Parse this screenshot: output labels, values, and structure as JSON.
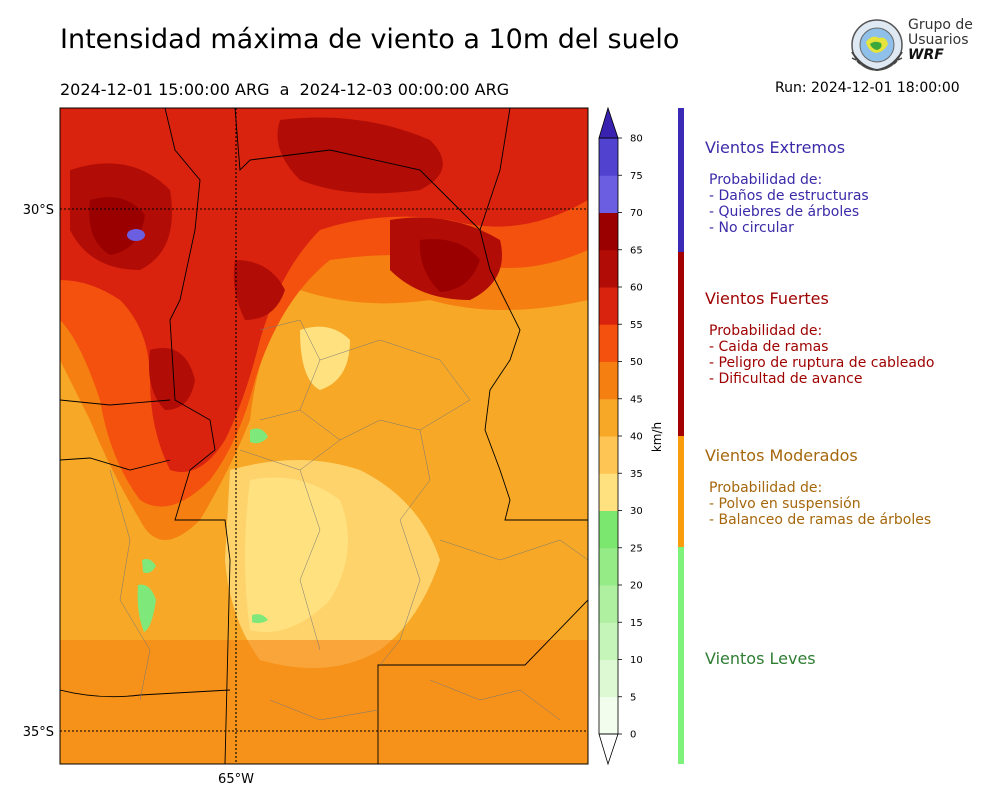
{
  "header": {
    "title": "Intensidad máxima de viento a 10m del suelo",
    "period": "2024-12-01 15:00:00 ARG  a  2024-12-03 00:00:00 ARG",
    "run": "Run: 2024-12-01 18:00:00"
  },
  "logo": {
    "line1": "Grupo de",
    "line2": "Usuarios",
    "line3": "WRF"
  },
  "map": {
    "lat_labels": [
      "30°S",
      "35°S"
    ],
    "lon_labels": [
      "65°W"
    ],
    "colors": {
      "base": "#f7a827",
      "light": "#ffd36b",
      "pale": "#ffe17f",
      "orange": "#f57f10",
      "red_orange": "#f4510f",
      "red": "#d9230e",
      "dark_red": "#b10c05",
      "deep_red": "#9b0000",
      "violet": "#6b5ee0",
      "green": "#7fe87a"
    }
  },
  "colorbar": {
    "unit": "km/h",
    "ticks": [
      "0",
      "5",
      "10",
      "15",
      "20",
      "25",
      "30",
      "35",
      "40",
      "45",
      "50",
      "55",
      "60",
      "65",
      "70",
      "75",
      "80"
    ],
    "colors": [
      "#f2fdee",
      "#dcf9d4",
      "#c6f5ba",
      "#aef0a0",
      "#95ec87",
      "#7ce76e",
      "#ffe17f",
      "#ffc554",
      "#f7a827",
      "#f57f10",
      "#f4510f",
      "#d9230e",
      "#b10c05",
      "#9b0000",
      "#6b5ee0",
      "#5142cf",
      "#3f2dbb"
    ],
    "over_color": "#3a22b0",
    "under_color": "#ffffff"
  },
  "legend": {
    "groups": [
      {
        "title": "Vientos Extremos",
        "lines": [
          "Probabilidad de:",
          "- Daños de estructuras",
          "- Quiebres de árboles",
          "- No circular"
        ],
        "color": "#3b2aa8",
        "bar_color": "#3a2ab5"
      },
      {
        "title": "Vientos Fuertes",
        "lines": [
          "Probabilidad de:",
          "- Caida de ramas",
          "- Peligro de ruptura de cableado",
          "- Dificultad de avance"
        ],
        "color": "#9e0000",
        "bar_color": "#a30000"
      },
      {
        "title": "Vientos Moderados",
        "lines": [
          "Probabilidad de:",
          "- Polvo en suspensión",
          "- Balanceo de ramas de árboles"
        ],
        "color": "#a5670c",
        "bar_color": "#f99d0f"
      },
      {
        "title": "Vientos Leves",
        "lines": [],
        "color": "#2e7d32",
        "bar_color": "#7ef27a"
      }
    ]
  }
}
